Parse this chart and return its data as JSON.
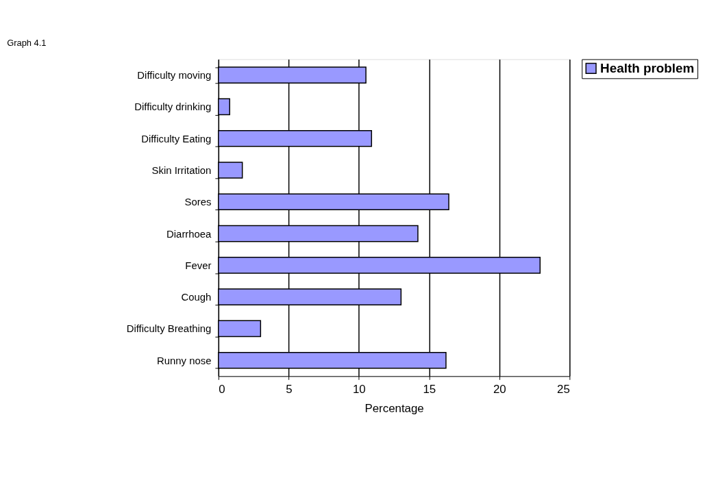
{
  "chart_data": {
    "type": "bar",
    "orientation": "horizontal",
    "title": "Graph 4.1",
    "xlabel": "Percentage",
    "categories": [
      "Difficulty moving",
      "Difficulty drinking",
      "Difficulty Eating",
      "Skin Irritation",
      "Sores",
      "Diarrhoea",
      "Fever",
      "Cough",
      "Difficulty Breathing",
      "Runny nose"
    ],
    "series": [
      {
        "name": "Health problem",
        "color": "#9999ff",
        "values": [
          10.5,
          0.8,
          10.9,
          1.7,
          16.4,
          14.2,
          22.9,
          13.0,
          3.0,
          16.2
        ]
      }
    ],
    "xlim": [
      0,
      25
    ],
    "xticks": [
      0,
      5,
      10,
      15,
      20,
      25
    ],
    "grid": "x",
    "legend": "right"
  }
}
